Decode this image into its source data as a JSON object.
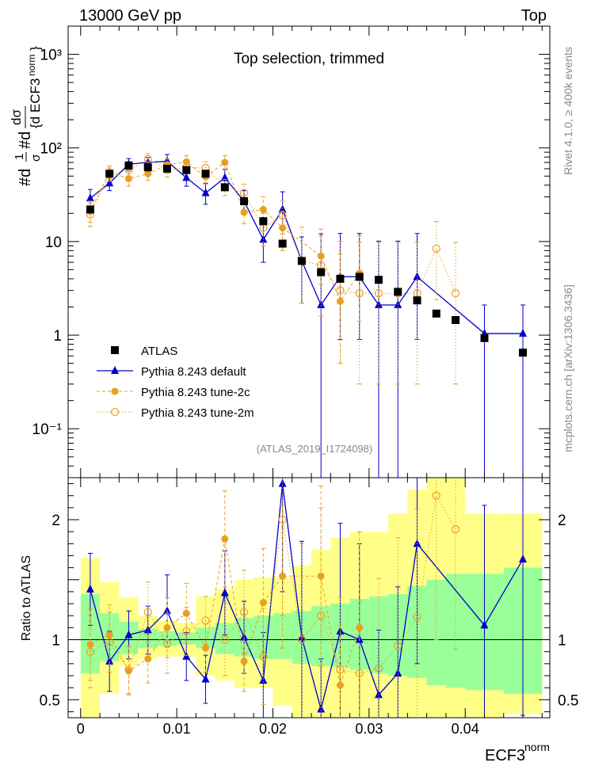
{
  "header": {
    "left_title": "13000 GeV pp",
    "right_title": "Top"
  },
  "side_labels": {
    "rivet": "Rivet 4.1.0, ≥ 400k events",
    "mcplots": "mcplots.cern.ch [arXiv:1306.3436]"
  },
  "chart_data": {
    "type": "scatter",
    "title": "Top selection, trimmed",
    "analysis_id": "(ATLAS_2019_I1724098)",
    "xlabel_base": "ECF3",
    "xlabel_sup": "norm",
    "ylabel_main": "1/σ dσ/d ECF3^norm",
    "ylabel_ratio": "Ratio to ATLAS",
    "xlim": [
      -0.0013,
      0.0488
    ],
    "ylim_main": [
      0.03,
      2000
    ],
    "ylim_ratio": [
      0.35,
      2.35
    ],
    "main_y_scale": "log",
    "x_ticks": [
      0,
      0.01,
      0.02,
      0.03,
      0.04
    ],
    "x_tick_labels": [
      "0",
      "0.01",
      "0.02",
      "0.03",
      "0.04"
    ],
    "main_y_ticks": [
      0.1,
      1,
      10,
      100,
      1000
    ],
    "main_y_tick_labels": [
      "10⁻¹",
      "1",
      "10",
      "10²",
      "10³"
    ],
    "ratio_y_ticks": [
      0.5,
      1,
      1.5,
      2
    ],
    "ratio_y_tick_labels": [
      "0.5",
      "1",
      "",
      "2"
    ],
    "legend_position": "lower-left",
    "series": [
      {
        "name": "ATLAS",
        "style": "data",
        "color": "#000000",
        "marker": "square",
        "x": [
          0.001,
          0.003,
          0.005,
          0.007,
          0.009,
          0.011,
          0.013,
          0.015,
          0.017,
          0.019,
          0.021,
          0.023,
          0.025,
          0.027,
          0.029,
          0.031,
          0.033,
          0.035,
          0.037,
          0.039,
          0.042,
          0.046
        ],
        "y": [
          22,
          53,
          65,
          62,
          60,
          58,
          53,
          38,
          27,
          16.5,
          9.5,
          6.2,
          4.7,
          4.0,
          4.2,
          3.9,
          2.9,
          2.35,
          1.7,
          1.45,
          0.93,
          0.65
        ]
      },
      {
        "name": "Pythia 8.243 default",
        "style": "solid",
        "color": "#0000cc",
        "marker": "triangle",
        "x": [
          0.001,
          0.003,
          0.005,
          0.007,
          0.009,
          0.011,
          0.013,
          0.015,
          0.017,
          0.019,
          0.021,
          0.023,
          0.025,
          0.027,
          0.029,
          0.031,
          0.033,
          0.035,
          0.042,
          0.046
        ],
        "y": [
          29,
          42,
          67,
          70,
          72,
          48,
          33,
          48,
          27,
          10.5,
          22,
          6.2,
          2.1,
          4.2,
          4.2,
          2.1,
          2.1,
          4.2,
          1.04,
          1.04
        ],
        "yerr_low": [
          6,
          7,
          9,
          8,
          12,
          9,
          8,
          10,
          7,
          4.5,
          10,
          4,
          2.1,
          3.3,
          3.3,
          2.1,
          2.1,
          3.3,
          1.04,
          1.04
        ],
        "yerr_high": [
          7,
          8,
          10,
          9,
          13,
          10,
          9,
          11,
          8,
          5,
          12,
          5,
          10,
          8,
          8,
          8,
          8,
          8,
          1.06,
          1.06
        ],
        "ratio": [
          1.42,
          0.82,
          1.04,
          1.08,
          1.24,
          0.86,
          0.67,
          1.39,
          1.02,
          0.66,
          2.3,
          1.02,
          0.42,
          1.07,
          1.0,
          0.54,
          0.72,
          1.8,
          1.12,
          1.67
        ],
        "ratio_err": [
          0.3,
          0.25,
          0.2,
          0.2,
          0.3,
          0.2,
          0.2,
          0.35,
          0.3,
          0.4,
          0.9,
          0.8,
          0.42,
          0.9,
          0.8,
          0.54,
          0.72,
          1.0,
          1.0,
          1.3
        ]
      },
      {
        "name": "Pythia 8.243 tune-2c",
        "style": "dashed",
        "color": "#e8a020",
        "marker": "circle-filled",
        "x": [
          0.001,
          0.003,
          0.005,
          0.007,
          0.009,
          0.011,
          0.013,
          0.015,
          0.017,
          0.019,
          0.021,
          0.025,
          0.027,
          0.029
        ],
        "y": [
          21,
          55,
          47,
          53,
          66,
          71,
          49,
          70,
          20.5,
          22,
          14,
          7.0,
          2.3,
          4.6
        ],
        "yerr_low": [
          5,
          8,
          8,
          8,
          10,
          11,
          8,
          12,
          5,
          7,
          6,
          3.5,
          1.8,
          3.2
        ],
        "yerr_high": [
          6,
          9,
          9,
          9,
          11,
          12,
          9,
          13,
          6,
          8,
          7,
          4.5,
          5,
          7
        ],
        "ratio": [
          0.96,
          1.04,
          0.74,
          0.84,
          1.1,
          1.22,
          0.93,
          1.84,
          0.82,
          1.31,
          1.53,
          1.53,
          0.62,
          1.1
        ],
        "ratio_err": [
          0.3,
          0.25,
          0.2,
          0.2,
          0.25,
          0.25,
          0.2,
          0.4,
          0.25,
          0.45,
          0.6,
          0.75,
          0.5,
          0.8
        ]
      },
      {
        "name": "Pythia 8.243 tune-2m",
        "style": "dotted",
        "color": "#e8a020",
        "marker": "circle-open",
        "x": [
          0.001,
          0.003,
          0.005,
          0.007,
          0.009,
          0.011,
          0.013,
          0.015,
          0.017,
          0.019,
          0.021,
          0.023,
          0.025,
          0.027,
          0.029,
          0.031,
          0.033,
          0.035,
          0.037,
          0.039
        ],
        "y": [
          19.5,
          52,
          58,
          76,
          58,
          62,
          61,
          38,
          33,
          14,
          19,
          6.2,
          5.6,
          3.0,
          2.8,
          2.8,
          2.8,
          2.8,
          8.4,
          2.8
        ],
        "yerr_low": [
          5,
          8,
          9,
          10,
          9,
          9,
          9,
          7,
          7,
          5,
          7,
          4,
          4,
          2.5,
          2.5,
          2.5,
          2.5,
          2.5,
          6,
          2.5
        ],
        "yerr_high": [
          6,
          9,
          10,
          11,
          10,
          10,
          10,
          8,
          8,
          6,
          8,
          8,
          8,
          7,
          7,
          7,
          7,
          7,
          8,
          7
        ],
        "ratio": [
          0.9,
          0.98,
          0.75,
          1.23,
          0.97,
          1.07,
          1.16,
          1.0,
          1.23,
          0.86,
          2.0,
          1.0,
          1.2,
          0.75,
          0.72,
          0.76,
          0.95,
          1.19,
          2.2,
          1.92
        ],
        "ratio_err": [
          0.3,
          0.25,
          0.2,
          0.25,
          0.25,
          0.2,
          0.2,
          0.3,
          0.35,
          0.4,
          0.8,
          0.8,
          0.9,
          0.6,
          0.6,
          0.75,
          0.9,
          0.9,
          1.2,
          1.0
        ]
      }
    ],
    "uncertainty_bands": {
      "edges": [
        0,
        0.002,
        0.004,
        0.006,
        0.008,
        0.01,
        0.012,
        0.014,
        0.016,
        0.018,
        0.02,
        0.022,
        0.024,
        0.026,
        0.028,
        0.03,
        0.032,
        0.034,
        0.036,
        0.038,
        0.04,
        0.044,
        0.048
      ],
      "inner_low": [
        0.72,
        0.82,
        0.88,
        0.93,
        0.95,
        0.96,
        0.93,
        0.88,
        0.86,
        0.84,
        0.84,
        0.8,
        0.78,
        0.77,
        0.75,
        0.72,
        0.7,
        0.68,
        0.62,
        0.6,
        0.58,
        0.55
      ],
      "inner_high": [
        1.38,
        1.22,
        1.15,
        1.09,
        1.07,
        1.06,
        1.1,
        1.14,
        1.18,
        1.2,
        1.22,
        1.24,
        1.28,
        1.3,
        1.34,
        1.36,
        1.38,
        1.45,
        1.5,
        1.55,
        1.55,
        1.6
      ],
      "outer_low": [
        0.35,
        0.55,
        0.78,
        0.84,
        0.86,
        0.86,
        0.7,
        0.66,
        0.6,
        0.6,
        0.45,
        0.35,
        0.35,
        0.35,
        0.35,
        0.35,
        0.35,
        0.35,
        0.35,
        0.35,
        0.35,
        0.38
      ],
      "outer_high": [
        1.68,
        1.48,
        1.35,
        1.2,
        1.16,
        1.14,
        1.36,
        1.42,
        1.5,
        1.52,
        1.52,
        1.62,
        1.75,
        1.85,
        1.9,
        1.9,
        2.05,
        2.25,
        2.35,
        2.35,
        2.05,
        2.05
      ],
      "inner_color": "#99ff99",
      "outer_color": "#ffff88"
    }
  }
}
